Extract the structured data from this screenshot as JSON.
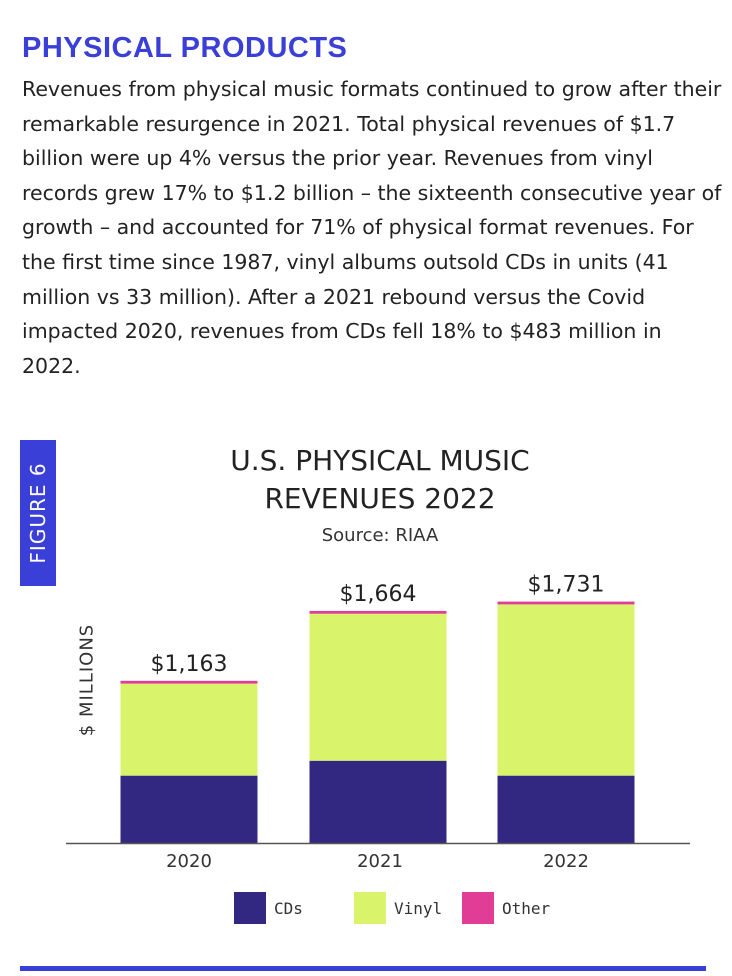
{
  "colors": {
    "accent": "#3a3fd8",
    "cds": "#322882",
    "vinyl": "#d9f46b",
    "other": "#e13c96",
    "baseline": "#555555"
  },
  "article": {
    "heading": "PHYSICAL PRODUCTS",
    "paragraph": "Revenues from physical music formats continued to grow after their remarkable resurgence in 2021. Total physical revenues of $1.7 billion were up 4% versus the prior year. Revenues from vinyl records grew 17% to $1.2 billion – the sixteenth consecutive year of growth – and accounted for 71% of physical format revenues. For the first time since 1987, vinyl albums outsold CDs in units (41 million vs 33 million). After a 2021 rebound versus the Covid impacted 2020, revenues from CDs fell 18% to $483 million in 2022."
  },
  "figure": {
    "tag": "FIGURE 6"
  },
  "chart_data": {
    "type": "bar",
    "stacked": true,
    "title_line1": "U.S. PHYSICAL MUSIC",
    "title_line2": "REVENUES 2022",
    "subtitle": "Source: RIAA",
    "ylabel": "$ MILLIONS",
    "xlabel": "",
    "ylim": [
      0,
      1850
    ],
    "grid": false,
    "categories": [
      "2020",
      "2021",
      "2022"
    ],
    "series": [
      {
        "name": "CDs",
        "values": [
          483,
          590,
          483
        ]
      },
      {
        "name": "Vinyl",
        "values": [
          660,
          1054,
          1228
        ]
      },
      {
        "name": "Other",
        "values": [
          20,
          20,
          20
        ]
      }
    ],
    "totals": [
      1163,
      1664,
      1731
    ],
    "total_labels": [
      "$1,163",
      "$1,664",
      "$1,731"
    ],
    "legend": [
      "CDs",
      "Vinyl",
      "Other"
    ],
    "legend_position": "bottom"
  }
}
